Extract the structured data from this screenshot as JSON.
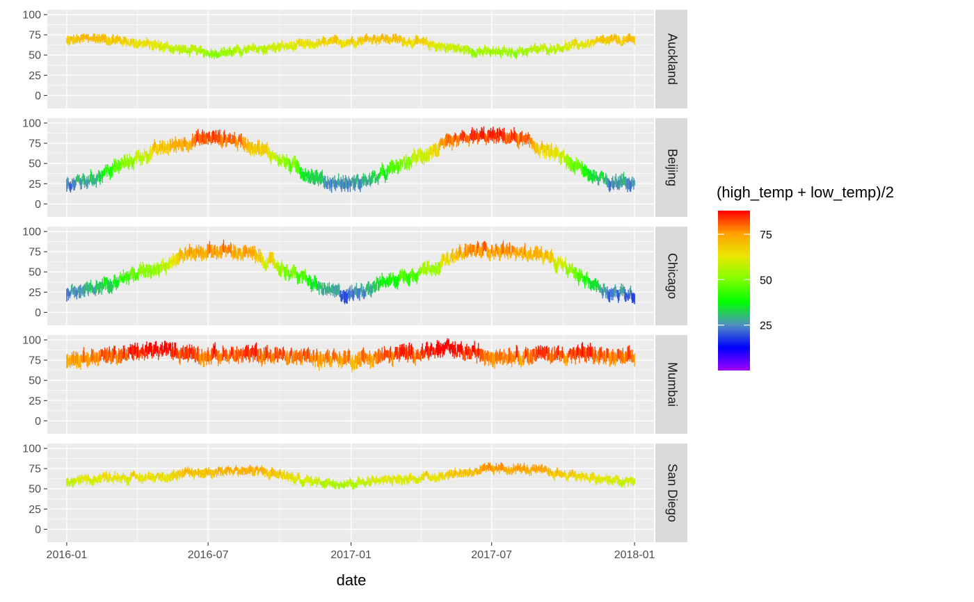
{
  "chart_data": {
    "type": "line",
    "xlabel": "date",
    "x_ticks": [
      "2016-01",
      "2016-07",
      "2017-01",
      "2017-07",
      "2018-01"
    ],
    "x_range": [
      "2015-12-07",
      "2018-01-26"
    ],
    "y_ticks": [
      0,
      25,
      50,
      75,
      100
    ],
    "ylim": [
      -16,
      106
    ],
    "grid": true,
    "facets": [
      {
        "name": "Auckland",
        "monthly_mean": [
          67,
          71,
          69,
          65,
          61,
          56,
          53,
          54,
          57,
          60,
          62,
          65,
          67,
          71,
          69,
          65,
          60,
          56,
          53,
          54,
          57,
          60,
          64,
          68,
          68
        ],
        "spread": 6
      },
      {
        "name": "Beijing",
        "monthly_mean": [
          24,
          30,
          44,
          57,
          68,
          76,
          82,
          80,
          71,
          56,
          40,
          27,
          25,
          31,
          46,
          60,
          72,
          82,
          84,
          82,
          70,
          56,
          38,
          28,
          26
        ],
        "spread": 9
      },
      {
        "name": "Chicago",
        "monthly_mean": [
          24,
          27,
          40,
          48,
          58,
          72,
          76,
          76,
          70,
          56,
          42,
          26,
          22,
          34,
          42,
          52,
          62,
          76,
          78,
          74,
          72,
          56,
          40,
          24,
          22
        ],
        "spread": 9
      },
      {
        "name": "Mumbai",
        "monthly_mean": [
          76,
          78,
          81,
          84,
          87,
          85,
          81,
          81,
          82,
          80,
          79,
          78,
          76,
          78,
          82,
          85,
          88,
          84,
          81,
          81,
          82,
          82,
          83,
          78,
          76
        ],
        "spread": 10
      },
      {
        "name": "San Diego",
        "monthly_mean": [
          58,
          62,
          65,
          63,
          66,
          68,
          71,
          73,
          72,
          68,
          60,
          58,
          57,
          60,
          61,
          64,
          67,
          71,
          74,
          75,
          72,
          68,
          65,
          60,
          58
        ],
        "spread": 6
      }
    ],
    "color_legend": {
      "title": "(high_temp + low_temp)/2",
      "ticks": [
        25,
        50,
        75
      ],
      "range": [
        0,
        88
      ],
      "colors": [
        "#A000FF",
        "#0000FF",
        "#5090C0",
        "#00FF00",
        "#80FF00",
        "#E8E800",
        "#FFA000",
        "#FF0000"
      ]
    }
  },
  "colors": {
    "panel_background": "#EBEBEB",
    "grid": "#FFFFFF",
    "strip_background": "#D9D9D9"
  }
}
